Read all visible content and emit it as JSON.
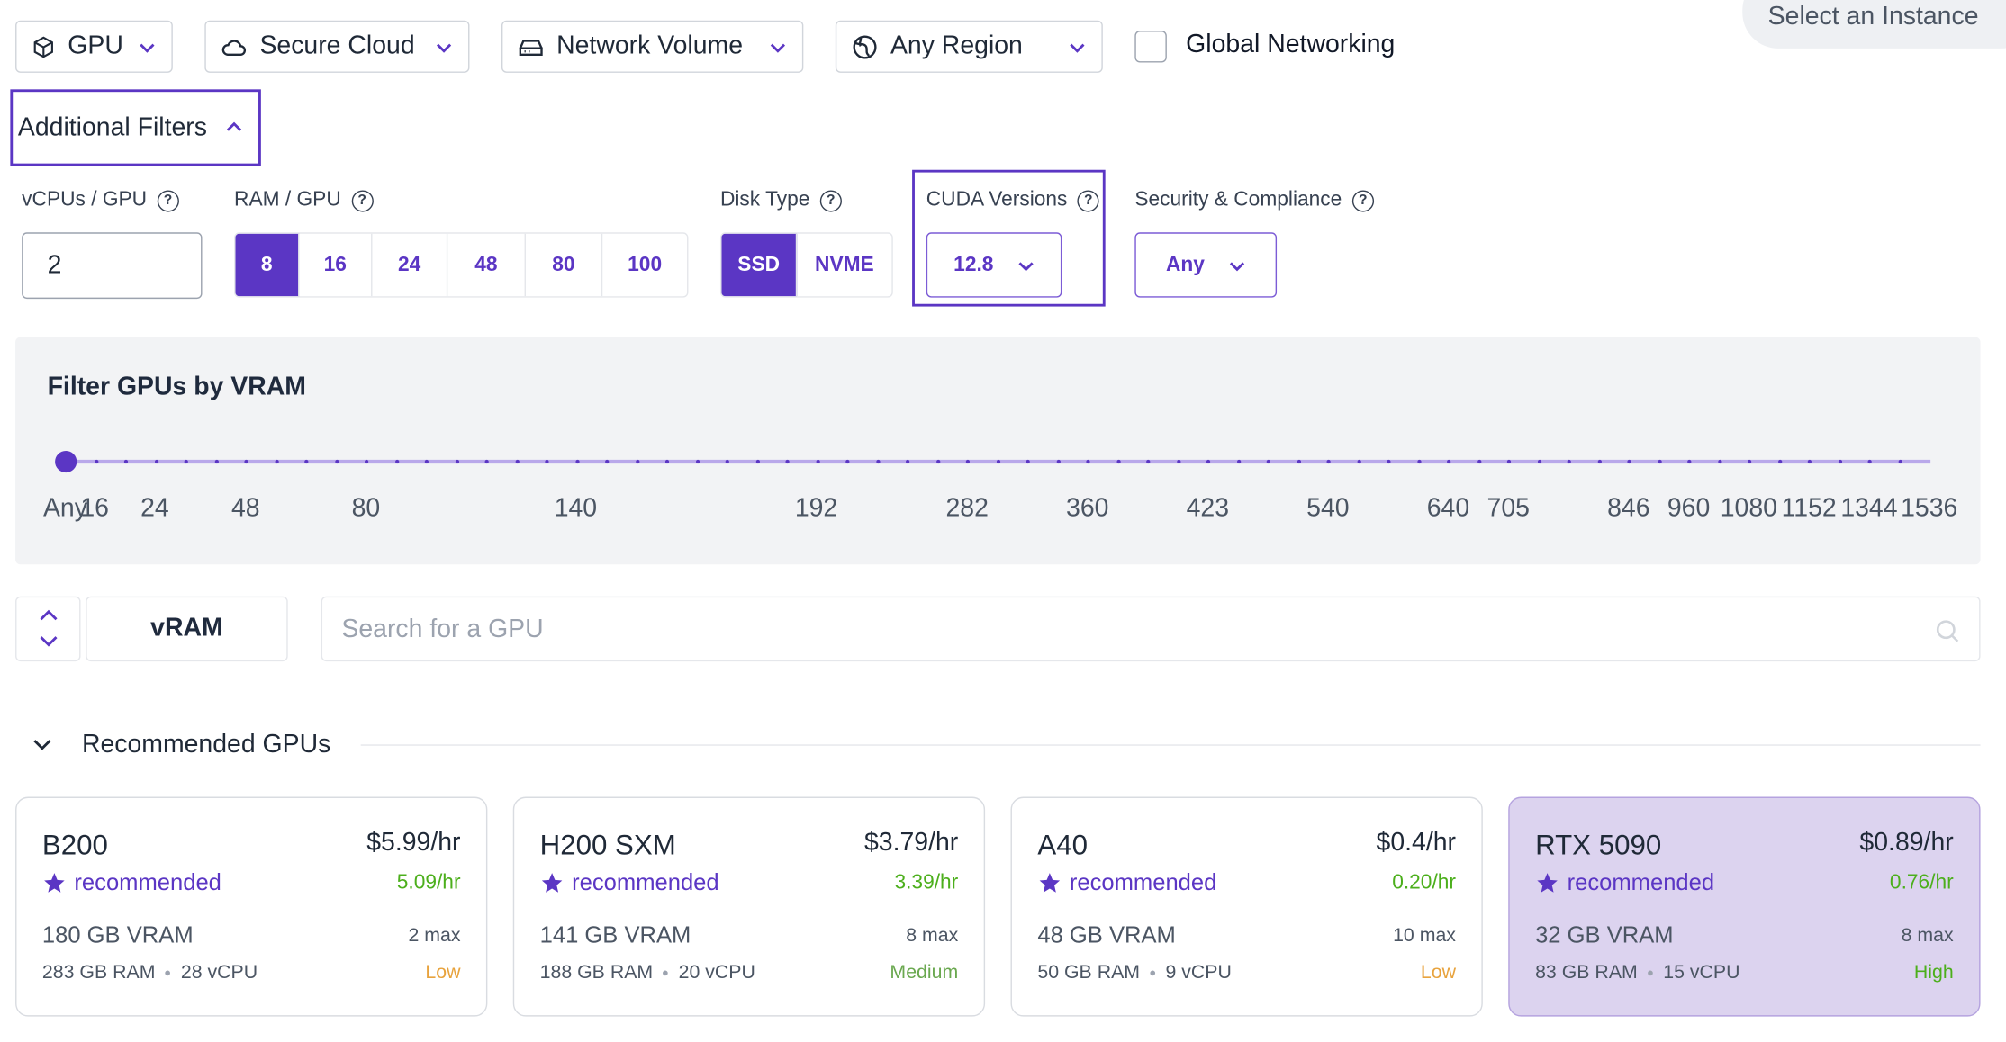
{
  "filters": {
    "gpu": "GPU",
    "cloud": "Secure Cloud",
    "volume": "Network Volume",
    "region": "Any Region",
    "global_networking": "Global Networking"
  },
  "select_instance": "Select an Instance",
  "additional_filters": "Additional Filters",
  "vcpus": {
    "label": "vCPUs / GPU",
    "value": "2"
  },
  "ram": {
    "label": "RAM / GPU",
    "options": [
      "8",
      "16",
      "24",
      "48",
      "80",
      "100"
    ],
    "selected": "8"
  },
  "disk": {
    "label": "Disk Type",
    "options": [
      "SSD",
      "NVME"
    ],
    "selected": "SSD"
  },
  "cuda": {
    "label": "CUDA Versions",
    "value": "12.8"
  },
  "security": {
    "label": "Security & Compliance",
    "value": "Any"
  },
  "vram_filter": {
    "title": "Filter GPUs by VRAM",
    "ticks": [
      "Any",
      "16",
      "24",
      "48",
      "80",
      "140",
      "192",
      "282",
      "360",
      "423",
      "540",
      "640",
      "705",
      "846",
      "960",
      "1080",
      "1152",
      "1344",
      "1536"
    ],
    "selected": "Any"
  },
  "sort": {
    "label": "vRAM"
  },
  "search": {
    "placeholder": "Search for a GPU"
  },
  "recommended": {
    "title": "Recommended GPUs",
    "cards": [
      {
        "name": "B200",
        "price": "$5.99/hr",
        "tag": "recommended",
        "spot": "5.09/hr",
        "vram": "180 GB VRAM",
        "max": "2 max",
        "ram": "283 GB RAM",
        "vcpu": "28 vCPU",
        "availability": "Low",
        "availability_color": "#e8a33d"
      },
      {
        "name": "H200 SXM",
        "price": "$3.79/hr",
        "tag": "recommended",
        "spot": "3.39/hr",
        "vram": "141 GB VRAM",
        "max": "8 max",
        "ram": "188 GB RAM",
        "vcpu": "20 vCPU",
        "availability": "Medium",
        "availability_color": "#6aa84f"
      },
      {
        "name": "A40",
        "price": "$0.4/hr",
        "tag": "recommended",
        "spot": "0.20/hr",
        "vram": "48 GB VRAM",
        "max": "10 max",
        "ram": "50 GB RAM",
        "vcpu": "9 vCPU",
        "availability": "Low",
        "availability_color": "#e8a33d"
      },
      {
        "name": "RTX 5090",
        "price": "$0.89/hr",
        "tag": "recommended",
        "spot": "0.76/hr",
        "vram": "32 GB VRAM",
        "max": "8 max",
        "ram": "83 GB RAM",
        "vcpu": "15 vCPU",
        "availability": "High",
        "availability_color": "#4caf1c"
      }
    ]
  },
  "colors": {
    "accent": "#5b36c4",
    "panel": "#f2f3f5",
    "selected_card": "#dcd3ef"
  }
}
